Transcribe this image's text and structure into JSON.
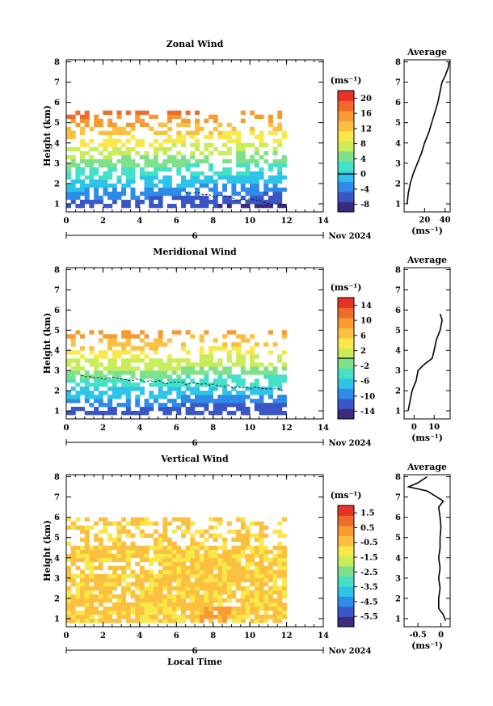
{
  "figure": {
    "date_label": "Nov 2024",
    "day_label": "6",
    "xlabel_bottom": "Local Time",
    "unit_label": "(ms⁻¹)"
  },
  "colorbar_colors": [
    "#3a2a80",
    "#3a56c4",
    "#2e8be8",
    "#2ec4e8",
    "#44e0c8",
    "#7ee08a",
    "#c8ec5a",
    "#f8e84a",
    "#fcc040",
    "#f89a34",
    "#f06a2c",
    "#e83228"
  ],
  "chart_data": [
    {
      "type": "heatmap",
      "title": "Zonal Wind",
      "xlabel": "",
      "ylabel": "Height (km)",
      "x_ticks": [
        0,
        2,
        4,
        6,
        8,
        10,
        12,
        14
      ],
      "y_ticks": [
        1,
        2,
        3,
        4,
        5,
        6,
        7,
        8
      ],
      "xlim": [
        0,
        14
      ],
      "ylim": [
        0.6,
        8.1
      ],
      "colorbar": {
        "unit": "(ms⁻¹)",
        "ticks": [
          20,
          16,
          12,
          8,
          4,
          0,
          -4,
          -8
        ],
        "range": [
          -10,
          22
        ]
      },
      "data_extent": {
        "time": [
          0,
          12
        ],
        "height": [
          0.8,
          5.6
        ]
      },
      "zero_contour": true,
      "profile": {
        "title": "Average",
        "x_ticks": [
          20,
          40
        ],
        "xlim": [
          0,
          45
        ],
        "xlabel": "(ms⁻¹)",
        "y_ticks": [
          1,
          2,
          3,
          4,
          5,
          6,
          7,
          8
        ],
        "points": [
          [
            3,
            1.0
          ],
          [
            4,
            1.5
          ],
          [
            6,
            2.0
          ],
          [
            9,
            2.5
          ],
          [
            13,
            3.0
          ],
          [
            17,
            3.5
          ],
          [
            20,
            4.0
          ],
          [
            24,
            4.5
          ],
          [
            27,
            5.0
          ],
          [
            30,
            5.5
          ],
          [
            33,
            6.0
          ],
          [
            35,
            6.5
          ],
          [
            37,
            7.0
          ],
          [
            40,
            7.3
          ],
          [
            43,
            7.7
          ],
          [
            44,
            8.0
          ]
        ]
      }
    },
    {
      "type": "heatmap",
      "title": "Meridional Wind",
      "xlabel": "",
      "ylabel": "Height (km)",
      "x_ticks": [
        0,
        2,
        4,
        6,
        8,
        10,
        12,
        14
      ],
      "y_ticks": [
        1,
        2,
        3,
        4,
        5,
        6,
        7,
        8
      ],
      "xlim": [
        0,
        14
      ],
      "ylim": [
        0.6,
        8.1
      ],
      "colorbar": {
        "unit": "(ms⁻¹)",
        "ticks": [
          14,
          10,
          6,
          2,
          -2,
          -6,
          -10,
          -14
        ],
        "range": [
          -16,
          16
        ]
      },
      "data_extent": {
        "time": [
          0,
          12
        ],
        "height": [
          0.8,
          5.0
        ]
      },
      "zero_contour": true,
      "profile": {
        "title": "Average",
        "x_ticks": [
          0,
          10
        ],
        "xlim": [
          -5,
          18
        ],
        "xlabel": "(ms⁻¹)",
        "y_ticks": [
          1,
          2,
          3,
          4,
          5,
          6,
          7,
          8
        ],
        "points": [
          [
            -3,
            1.0
          ],
          [
            -2,
            1.5
          ],
          [
            -1,
            2.0
          ],
          [
            1,
            2.5
          ],
          [
            2,
            3.0
          ],
          [
            5,
            3.3
          ],
          [
            9,
            3.6
          ],
          [
            10,
            4.0
          ],
          [
            11,
            4.5
          ],
          [
            13,
            5.0
          ],
          [
            14,
            5.5
          ],
          [
            13,
            5.8
          ]
        ]
      }
    },
    {
      "type": "heatmap",
      "title": "Vertical Wind",
      "xlabel": "Local Time",
      "ylabel": "Height (km)",
      "x_ticks": [
        0,
        2,
        4,
        6,
        8,
        10,
        12,
        14
      ],
      "y_ticks": [
        1,
        2,
        3,
        4,
        5,
        6,
        7,
        8
      ],
      "xlim": [
        0,
        14
      ],
      "ylim": [
        0.6,
        8.1
      ],
      "colorbar": {
        "unit": "(ms⁻¹)",
        "ticks": [
          1.5,
          0.5,
          -0.5,
          -1.5,
          -2.5,
          -3.5,
          -4.5,
          -5.5
        ],
        "range": [
          -6.2,
          2.0
        ]
      },
      "data_extent": {
        "time": [
          0,
          12
        ],
        "height": [
          0.8,
          6.0
        ]
      },
      "zero_contour": false,
      "profile": {
        "title": "Average",
        "x_ticks": [
          -0.5,
          0.0
        ],
        "xlim": [
          -0.8,
          0.2
        ],
        "xlabel": "(ms⁻¹)",
        "y_ticks": [
          1,
          2,
          3,
          4,
          5,
          6,
          7,
          8
        ],
        "points": [
          [
            0.1,
            0.9
          ],
          [
            0.05,
            1.2
          ],
          [
            -0.05,
            1.5
          ],
          [
            -0.05,
            2.0
          ],
          [
            -0.02,
            2.5
          ],
          [
            -0.05,
            3.0
          ],
          [
            -0.02,
            3.5
          ],
          [
            -0.05,
            4.0
          ],
          [
            -0.02,
            4.5
          ],
          [
            -0.02,
            5.0
          ],
          [
            0.0,
            5.5
          ],
          [
            -0.02,
            6.0
          ],
          [
            -0.05,
            6.5
          ],
          [
            0.05,
            6.8
          ],
          [
            -0.3,
            7.3
          ],
          [
            -0.7,
            7.5
          ],
          [
            -0.5,
            7.7
          ],
          [
            -0.3,
            8.0
          ]
        ]
      }
    }
  ]
}
